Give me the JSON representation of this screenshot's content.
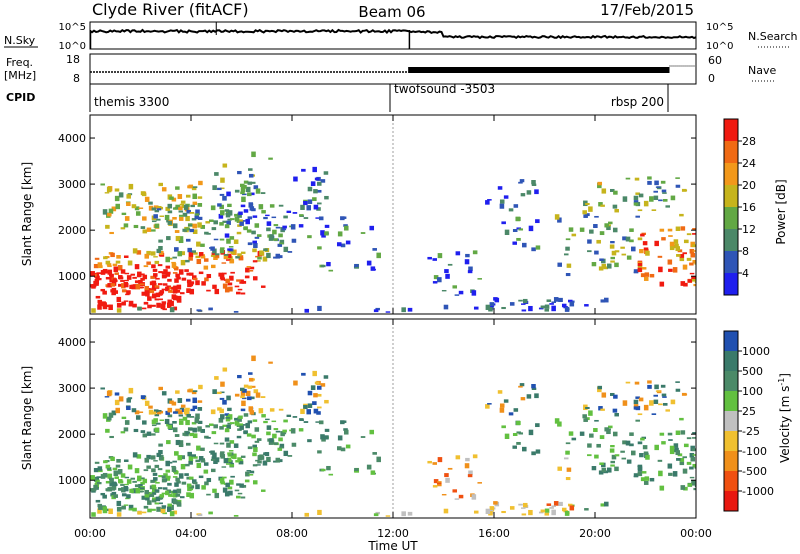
{
  "header": {
    "station": "Clyde River (fitACF)",
    "beam": "Beam 06",
    "date": "17/Feb/2015"
  },
  "top_panels": {
    "nsky_label": "N.Sky",
    "nsky_ticks": [
      "10^5",
      "10^0"
    ],
    "nsearch_label": "N.Search",
    "nsearch_ticks": [
      "10^5",
      "10^0"
    ],
    "freq_label": "Freq.",
    "freq_unit": "[MHz]",
    "freq_ticks": [
      "18",
      "8"
    ],
    "nave_label": "Nave",
    "nave_ticks": [
      "60",
      "0"
    ],
    "cpid_label": "CPID",
    "cpid_segments": [
      {
        "name": "themis 3300",
        "start_hour": 0,
        "end_hour": 12.6
      },
      {
        "name": "twofsound -3503",
        "start_hour": 12.6,
        "end_hour": 22.95
      },
      {
        "name": "rbsp 200",
        "start_hour": 17.0,
        "end_hour": 22.95
      }
    ]
  },
  "chart_data": [
    {
      "type": "heatmap",
      "quantity": "Power",
      "ylabel": "Slant Range [km]",
      "xlabel": "Time UT",
      "xlim_hours": [
        0,
        24
      ],
      "ylim": [
        180,
        4500
      ],
      "yticks": [
        1000,
        2000,
        3000,
        4000
      ],
      "xticks": [
        "00:00",
        "04:00",
        "08:00",
        "12:00",
        "16:00",
        "20:00",
        "00:00"
      ],
      "colorbar": {
        "label": "Power [dB]",
        "ticks": [
          "4",
          "8",
          "12",
          "16",
          "20",
          "24",
          "28"
        ],
        "range": [
          0,
          30
        ],
        "colors": [
          "#1f1fee",
          "#2f55b6",
          "#4b8868",
          "#62a844",
          "#c6b41c",
          "#f2981a",
          "#f06a14",
          "#f01a10"
        ]
      }
    },
    {
      "type": "heatmap",
      "quantity": "Velocity",
      "ylabel": "Slant Range [km]",
      "xlabel": "Time UT",
      "xlim_hours": [
        0,
        24
      ],
      "ylim": [
        180,
        4500
      ],
      "yticks": [
        1000,
        2000,
        3000,
        4000
      ],
      "xticks": [
        "00:00",
        "04:00",
        "08:00",
        "12:00",
        "16:00",
        "20:00",
        "00:00"
      ],
      "colorbar": {
        "label": "Velocity [m s",
        "label_superscript": "-1",
        "label_close": "]",
        "ticks": [
          "1000",
          "500",
          "100",
          "25",
          "-25",
          "-100",
          "-500",
          "-1000"
        ],
        "colors": [
          "#2050b0",
          "#3a7a6a",
          "#4b8a68",
          "#62c040",
          "#c0c0c0",
          "#f0c030",
          "#f0901a",
          "#f05010",
          "#e81810"
        ]
      }
    }
  ]
}
